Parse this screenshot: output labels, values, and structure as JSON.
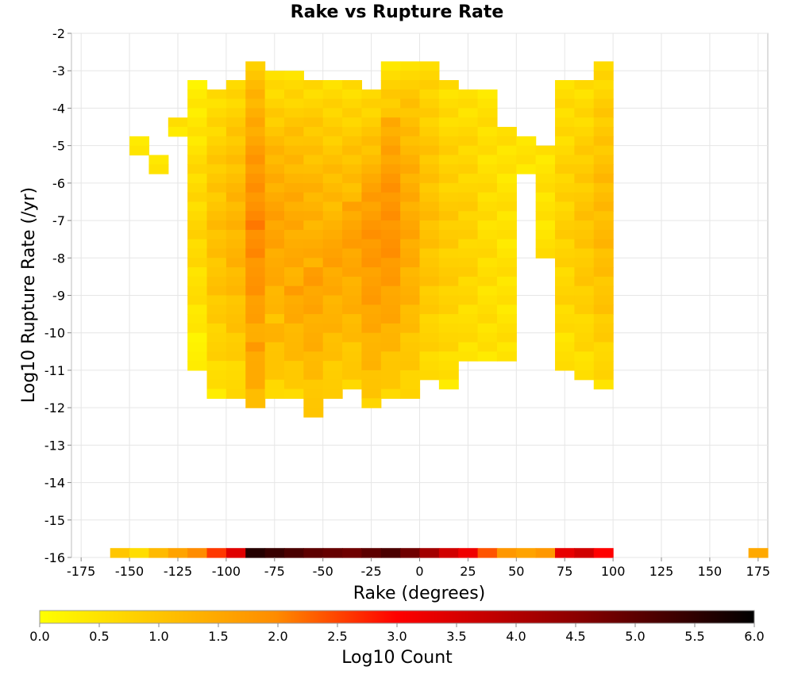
{
  "chart_data": {
    "type": "heatmap",
    "title": "Rake vs Rupture Rate",
    "xlabel": "Rake (degrees)",
    "ylabel": "Log10 Rupture Rate (/yr)",
    "xlim": [
      -180,
      180
    ],
    "ylim": [
      -16,
      -2
    ],
    "x_ticks": [
      -175,
      -150,
      -125,
      -100,
      -75,
      -50,
      -25,
      0,
      25,
      50,
      75,
      100,
      125,
      150,
      175
    ],
    "y_ticks": [
      -2,
      -3,
      -4,
      -5,
      -6,
      -7,
      -8,
      -9,
      -10,
      -11,
      -12,
      -13,
      -14,
      -15,
      -16
    ],
    "grid": true,
    "cell_size": {
      "rake_degrees": 10,
      "log_rate": 0.25
    },
    "colorbar": {
      "label": "Log10 Count",
      "min": 0.0,
      "max": 6.0,
      "ticks": [
        "0.0",
        "0.5",
        "1.0",
        "1.5",
        "2.0",
        "2.5",
        "3.0",
        "3.5",
        "4.0",
        "4.5",
        "5.0",
        "5.5",
        "6.0"
      ],
      "colors": [
        "#ffff00",
        "#ff8c00",
        "#ff0000",
        "#8b0000",
        "#000000"
      ]
    },
    "columns": [
      {
        "rake": -155,
        "y_top": null,
        "y_bottom": null,
        "core": 0.0,
        "edge": 0.0,
        "bottom_value": 1.0
      },
      {
        "rake": -145,
        "y_top": -4.75,
        "y_bottom": -5.0,
        "core": 0.6,
        "edge": 0.6,
        "bottom_value": 0.6
      },
      {
        "rake": -135,
        "y_top": -5.25,
        "y_bottom": -5.5,
        "core": 0.8,
        "edge": 0.8,
        "bottom_value": 1.2
      },
      {
        "rake": -125,
        "y_top": -4.25,
        "y_bottom": -4.5,
        "core": 0.8,
        "edge": 0.8,
        "bottom_value": 1.6
      },
      {
        "rake": -115,
        "y_top": -3.25,
        "y_bottom": -10.75,
        "core": 1.0,
        "edge": 0.5,
        "bottom_value": 2.0
      },
      {
        "rake": -105,
        "y_top": -3.5,
        "y_bottom": -11.5,
        "core": 1.4,
        "edge": 0.8,
        "bottom_value": 2.6
      },
      {
        "rake": -95,
        "y_top": -3.25,
        "y_bottom": -11.5,
        "core": 1.6,
        "edge": 0.9,
        "bottom_value": 3.4
      },
      {
        "rake": -85,
        "y_top": -2.75,
        "y_bottom": -11.75,
        "core": 2.3,
        "edge": 1.2,
        "bottom_value": 5.6
      },
      {
        "rake": -75,
        "y_top": -3.0,
        "y_bottom": -11.5,
        "core": 1.9,
        "edge": 0.7,
        "bottom_value": 5.4
      },
      {
        "rake": -65,
        "y_top": -3.0,
        "y_bottom": -11.5,
        "core": 1.8,
        "edge": 0.8,
        "bottom_value": 5.2
      },
      {
        "rake": -55,
        "y_top": -3.25,
        "y_bottom": -12.0,
        "core": 1.7,
        "edge": 0.9,
        "bottom_value": 5.0
      },
      {
        "rake": -45,
        "y_top": -3.25,
        "y_bottom": -11.5,
        "core": 1.6,
        "edge": 0.8,
        "bottom_value": 4.9
      },
      {
        "rake": -35,
        "y_top": -3.25,
        "y_bottom": -11.25,
        "core": 1.6,
        "edge": 0.8,
        "bottom_value": 4.8
      },
      {
        "rake": -25,
        "y_top": -3.5,
        "y_bottom": -11.75,
        "core": 1.8,
        "edge": 0.9,
        "bottom_value": 5.0
      },
      {
        "rake": -15,
        "y_top": -2.75,
        "y_bottom": -11.5,
        "core": 1.9,
        "edge": 0.8,
        "bottom_value": 5.2
      },
      {
        "rake": -5,
        "y_top": -2.75,
        "y_bottom": -11.5,
        "core": 1.5,
        "edge": 0.7,
        "bottom_value": 4.8
      },
      {
        "rake": 5,
        "y_top": -2.75,
        "y_bottom": -11.0,
        "core": 1.1,
        "edge": 0.6,
        "bottom_value": 4.2
      },
      {
        "rake": 15,
        "y_top": -3.25,
        "y_bottom": -11.25,
        "core": 0.9,
        "edge": 0.5,
        "bottom_value": 3.6
      },
      {
        "rake": 25,
        "y_top": -3.5,
        "y_bottom": -10.5,
        "core": 0.8,
        "edge": 0.5,
        "bottom_value": 3.2
      },
      {
        "rake": 35,
        "y_top": -3.5,
        "y_bottom": -10.5,
        "core": 0.6,
        "edge": 0.5,
        "bottom_value": 2.4
      },
      {
        "rake": 45,
        "y_top": -4.5,
        "y_bottom": -10.5,
        "core": 0.5,
        "edge": 0.5,
        "bottom_value": 1.8
      },
      {
        "rake": 55,
        "y_top": -4.75,
        "y_bottom": -5.5,
        "core": 0.5,
        "edge": 0.5,
        "bottom_value": 1.6
      },
      {
        "rake": 65,
        "y_top": -5.0,
        "y_bottom": -7.75,
        "core": 0.5,
        "edge": 0.5,
        "bottom_value": 1.8
      },
      {
        "rake": 75,
        "y_top": -3.25,
        "y_bottom": -10.75,
        "core": 0.8,
        "edge": 0.5,
        "bottom_value": 3.3
      },
      {
        "rake": 85,
        "y_top": -3.25,
        "y_bottom": -11.0,
        "core": 1.0,
        "edge": 0.5,
        "bottom_value": 3.6
      },
      {
        "rake": 95,
        "y_top": -2.75,
        "y_bottom": -11.25,
        "core": 1.2,
        "edge": 0.6,
        "bottom_value": 3.0
      },
      {
        "rake": 175,
        "y_top": null,
        "y_bottom": null,
        "core": 0.0,
        "edge": 0.0,
        "bottom_value": 1.5
      }
    ]
  }
}
